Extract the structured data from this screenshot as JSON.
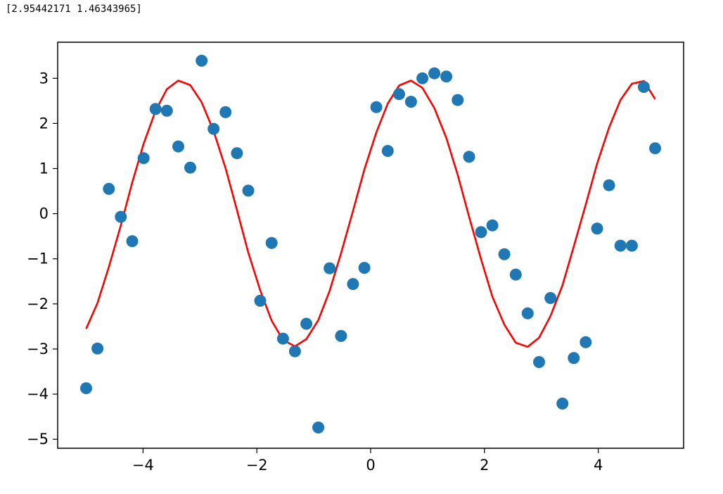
{
  "output_text": "[2.95442171 1.46343965]",
  "colors": {
    "points": "#1f77b4",
    "fit_line": "#ff0000",
    "axes": "#000000",
    "background": "#ffffff"
  },
  "chart_data": {
    "type": "scatter",
    "title": "",
    "xlabel": "",
    "ylabel": "",
    "xlim": [
      -5.5,
      5.5
    ],
    "ylim": [
      -5.2,
      3.8
    ],
    "grid": false,
    "legend": "none",
    "xticks": [
      -4,
      -2,
      0,
      2,
      4
    ],
    "yticks": [
      3,
      2,
      1,
      0,
      -1,
      -2,
      -3,
      -4,
      -5
    ],
    "series": [
      {
        "kind": "scatter",
        "x": [
          -5.0,
          -4.8,
          -4.6,
          -4.39,
          -4.19,
          -3.99,
          -3.78,
          -3.58,
          -3.38,
          -3.17,
          -2.97,
          -2.76,
          -2.55,
          -2.35,
          -2.15,
          -1.94,
          -1.74,
          -1.54,
          -1.33,
          -1.13,
          -0.92,
          -0.72,
          -0.52,
          -0.31,
          -0.11,
          0.1,
          0.3,
          0.5,
          0.71,
          0.91,
          1.12,
          1.33,
          1.53,
          1.73,
          1.94,
          2.14,
          2.35,
          2.55,
          2.76,
          2.96,
          3.16,
          3.37,
          3.57,
          3.78,
          3.98,
          4.19,
          4.39,
          4.59,
          4.8,
          5.0
        ],
        "y": [
          -3.87,
          -2.99,
          0.55,
          -0.07,
          -0.61,
          1.23,
          2.32,
          2.28,
          1.49,
          1.02,
          3.39,
          1.88,
          2.25,
          1.34,
          0.51,
          -1.93,
          -0.65,
          -2.77,
          -3.05,
          -2.44,
          -4.74,
          -1.21,
          -2.71,
          -1.56,
          -1.2,
          2.36,
          1.39,
          2.65,
          2.48,
          3.0,
          3.11,
          3.04,
          2.52,
          1.26,
          -0.41,
          -0.26,
          -0.9,
          -1.35,
          -2.21,
          -3.29,
          -1.87,
          -4.21,
          -3.2,
          -2.85,
          -0.33,
          0.63,
          -0.71,
          -0.71,
          2.81,
          1.45
        ]
      },
      {
        "kind": "line",
        "x": [
          -5.0,
          -4.8,
          -4.6,
          -4.39,
          -4.19,
          -3.99,
          -3.78,
          -3.58,
          -3.38,
          -3.17,
          -2.97,
          -2.76,
          -2.55,
          -2.35,
          -2.15,
          -1.94,
          -1.74,
          -1.54,
          -1.33,
          -1.13,
          -0.92,
          -0.72,
          -0.52,
          -0.31,
          -0.11,
          0.1,
          0.3,
          0.5,
          0.71,
          0.91,
          1.12,
          1.33,
          1.53,
          1.73,
          1.94,
          2.14,
          2.35,
          2.55,
          2.76,
          2.96,
          3.16,
          3.37,
          3.57,
          3.78,
          3.98,
          4.19,
          4.39,
          4.59,
          4.8,
          5.0
        ],
        "y": [
          -2.55,
          -1.98,
          -1.18,
          -0.26,
          0.69,
          1.55,
          2.28,
          2.76,
          2.95,
          2.85,
          2.47,
          1.83,
          1.01,
          0.08,
          -0.86,
          -1.7,
          -2.37,
          -2.8,
          -2.94,
          -2.78,
          -2.36,
          -1.71,
          -0.88,
          0.06,
          0.98,
          1.8,
          2.44,
          2.84,
          2.95,
          2.79,
          2.34,
          1.68,
          0.86,
          -0.07,
          -1.01,
          -1.84,
          -2.46,
          -2.86,
          -2.95,
          -2.75,
          -2.27,
          -1.59,
          -0.73,
          0.2,
          1.11,
          1.91,
          2.52,
          2.88,
          2.94,
          2.54
        ]
      }
    ]
  }
}
